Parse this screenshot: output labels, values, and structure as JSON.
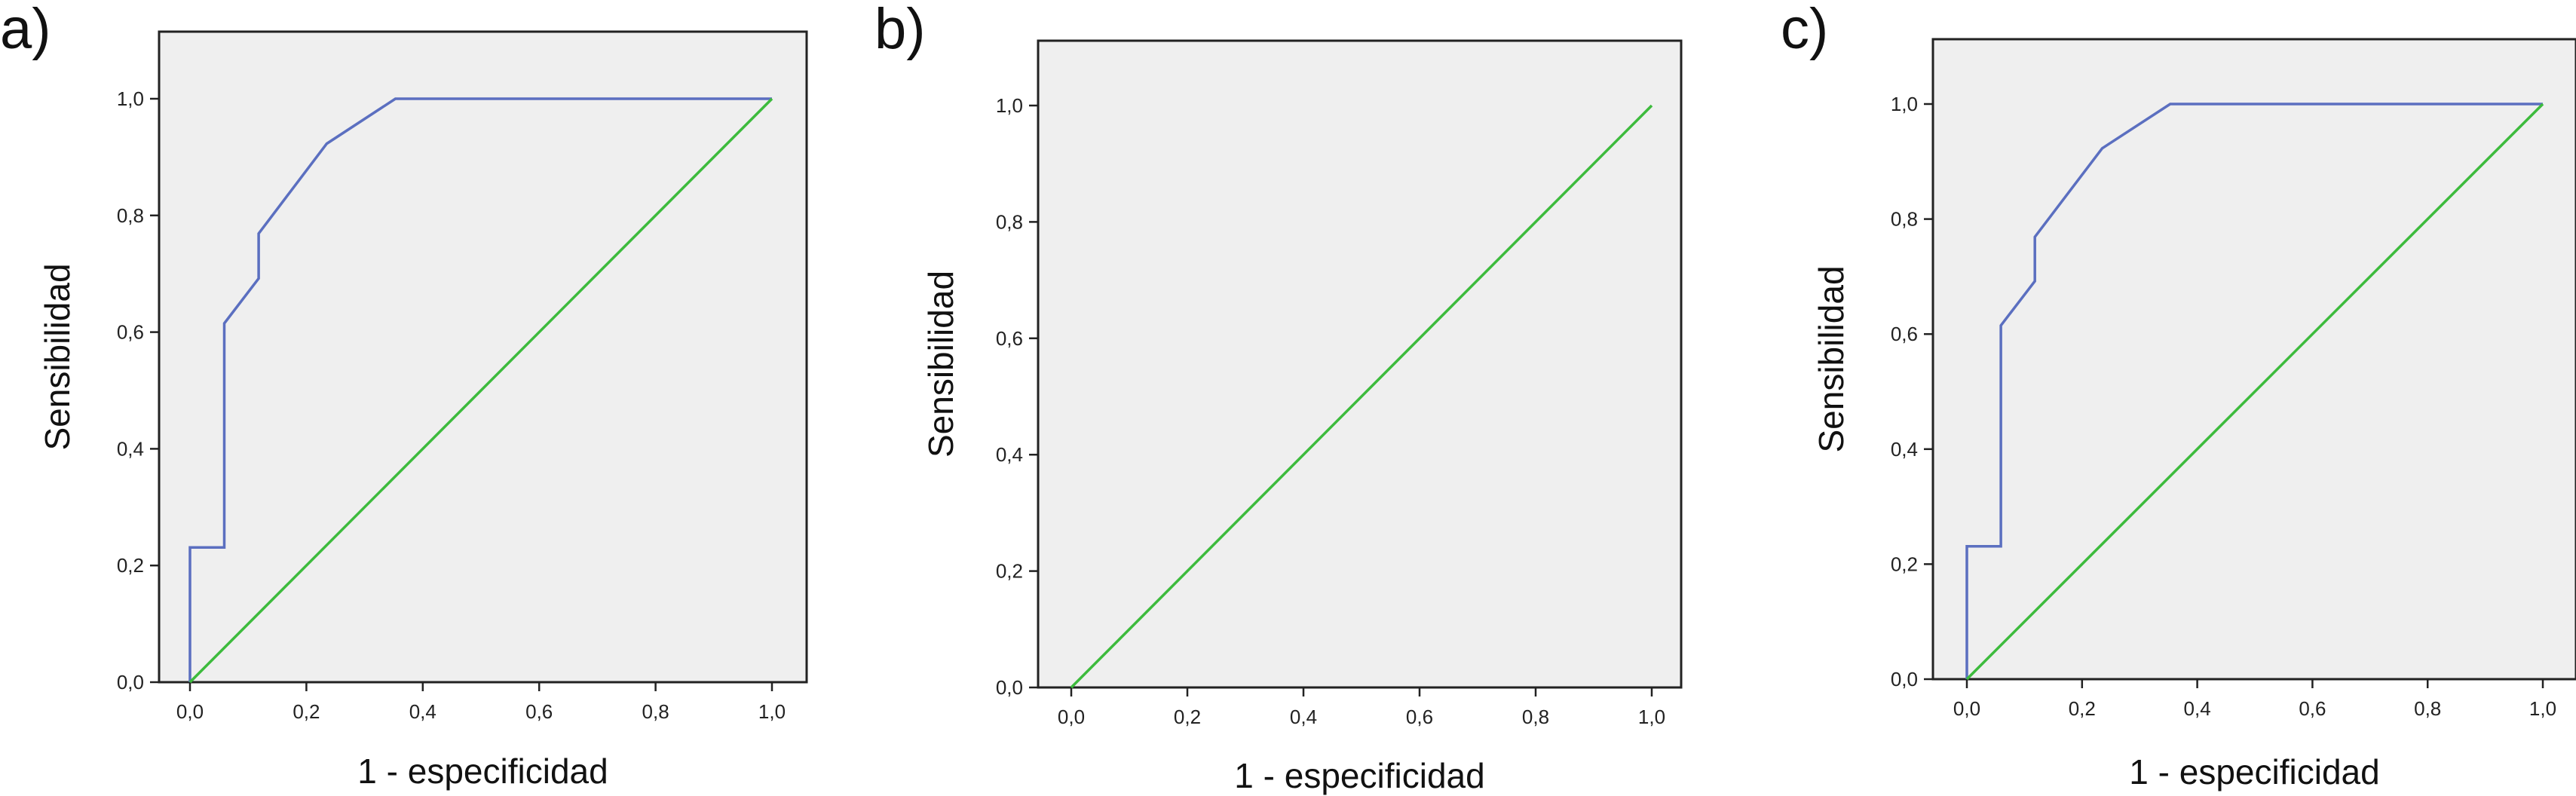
{
  "chart_data": [
    {
      "type": "line",
      "panel_label": "a)",
      "xlabel": "1 - especificidad",
      "ylabel": "Sensibilidad",
      "xlim": [
        0,
        1
      ],
      "ylim": [
        0,
        1
      ],
      "x_ticks": [
        "0,0",
        "0,2",
        "0,4",
        "0,6",
        "0,8",
        "1,0"
      ],
      "y_ticks": [
        "0,0",
        "0,2",
        "0,4",
        "0,6",
        "0,8",
        "1,0"
      ],
      "plot_background": "#efefef",
      "grid": false,
      "series": [
        {
          "color": "#5b6fc0",
          "points": [
            [
              0.0,
              0.0
            ],
            [
              0.0,
              0.231
            ],
            [
              0.059,
              0.231
            ],
            [
              0.059,
              0.615
            ],
            [
              0.118,
              0.692
            ],
            [
              0.118,
              0.769
            ],
            [
              0.235,
              0.923
            ],
            [
              0.353,
              1.0
            ],
            [
              1.0,
              1.0
            ]
          ]
        },
        {
          "color": "#3dbb3d",
          "points": [
            [
              0.0,
              0.0
            ],
            [
              1.0,
              1.0
            ]
          ]
        }
      ]
    },
    {
      "type": "line",
      "panel_label": "b)",
      "xlabel": "1 - especificidad",
      "ylabel": "Sensibilidad",
      "xlim": [
        0,
        1
      ],
      "ylim": [
        0,
        1
      ],
      "x_ticks": [
        "0,0",
        "0,2",
        "0,4",
        "0,6",
        "0,8",
        "1,0"
      ],
      "y_ticks": [
        "0,0",
        "0,2",
        "0,4",
        "0,6",
        "0,8",
        "1,0"
      ],
      "plot_background": "#efefef",
      "grid": false,
      "series": [
        {
          "color": "#3dbb3d",
          "points": [
            [
              0.0,
              0.0
            ],
            [
              1.0,
              1.0
            ]
          ]
        }
      ]
    },
    {
      "type": "line",
      "panel_label": "c)",
      "xlabel": "1 - especificidad",
      "ylabel": "Sensibilidad",
      "xlim": [
        0,
        1
      ],
      "ylim": [
        0,
        1
      ],
      "x_ticks": [
        "0,0",
        "0,2",
        "0,4",
        "0,6",
        "0,8",
        "1,0"
      ],
      "y_ticks": [
        "0,0",
        "0,2",
        "0,4",
        "0,6",
        "0,8",
        "1,0"
      ],
      "plot_background": "#efefef",
      "grid": false,
      "series": [
        {
          "color": "#5b6fc0",
          "points": [
            [
              0.0,
              0.0
            ],
            [
              0.0,
              0.231
            ],
            [
              0.059,
              0.231
            ],
            [
              0.059,
              0.615
            ],
            [
              0.118,
              0.692
            ],
            [
              0.118,
              0.769
            ],
            [
              0.235,
              0.923
            ],
            [
              0.353,
              1.0
            ],
            [
              1.0,
              1.0
            ]
          ]
        },
        {
          "color": "#3dbb3d",
          "points": [
            [
              0.0,
              0.0
            ],
            [
              1.0,
              1.0
            ]
          ]
        }
      ]
    }
  ]
}
